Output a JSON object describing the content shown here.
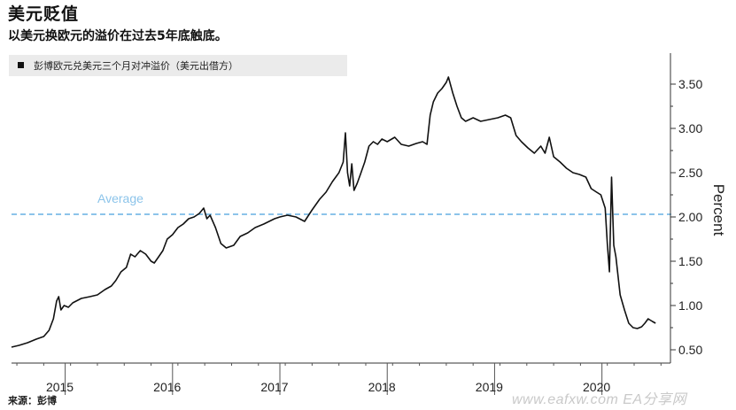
{
  "header": {
    "title": "美元贬值",
    "subtitle": "以美元换欧元的溢价在过去5年底触底。"
  },
  "footer": {
    "source": "来源：彭博",
    "watermark": "www.eafxw.com  EA分享网"
  },
  "chart_data": {
    "type": "line",
    "title": "美元贬值",
    "subtitle": "以美元换欧元的溢价在过去5年底触底。",
    "ylabel": "Percent",
    "ylim": [
      0.35,
      3.85
    ],
    "xlim": [
      2014.55,
      2020.68
    ],
    "y_ticks": [
      0.5,
      1.0,
      1.5,
      2.0,
      2.5,
      3.0,
      3.5
    ],
    "y_tick_labels": [
      "0.50",
      "1.00",
      "1.50",
      "2.00",
      "2.50",
      "3.00",
      "3.50"
    ],
    "x_year_labels": [
      "2015",
      "2016",
      "2017",
      "2018",
      "2019",
      "2020"
    ],
    "x_year_label_positions": [
      2015.0,
      2016.0,
      2017.0,
      2018.0,
      2019.0,
      2020.0
    ],
    "x_year_boundaries": [
      2015.05,
      2016.05,
      2017.05,
      2018.05,
      2019.05,
      2020.05
    ],
    "legend_position": "top-left",
    "grid": false,
    "series": [
      {
        "name": "彭博欧元兑美元三个月对冲溢价（美元出借方）",
        "color": "#111111",
        "points": [
          [
            2014.55,
            0.53
          ],
          [
            2014.62,
            0.55
          ],
          [
            2014.7,
            0.58
          ],
          [
            2014.78,
            0.62
          ],
          [
            2014.85,
            0.65
          ],
          [
            2014.9,
            0.72
          ],
          [
            2014.94,
            0.85
          ],
          [
            2014.97,
            1.05
          ],
          [
            2014.99,
            1.1
          ],
          [
            2015.01,
            0.95
          ],
          [
            2015.04,
            1.0
          ],
          [
            2015.08,
            0.98
          ],
          [
            2015.12,
            1.03
          ],
          [
            2015.2,
            1.08
          ],
          [
            2015.28,
            1.1
          ],
          [
            2015.35,
            1.12
          ],
          [
            2015.42,
            1.18
          ],
          [
            2015.48,
            1.22
          ],
          [
            2015.52,
            1.28
          ],
          [
            2015.57,
            1.38
          ],
          [
            2015.62,
            1.43
          ],
          [
            2015.66,
            1.58
          ],
          [
            2015.7,
            1.55
          ],
          [
            2015.75,
            1.62
          ],
          [
            2015.8,
            1.58
          ],
          [
            2015.85,
            1.5
          ],
          [
            2015.88,
            1.48
          ],
          [
            2015.92,
            1.55
          ],
          [
            2015.96,
            1.62
          ],
          [
            2016.0,
            1.75
          ],
          [
            2016.05,
            1.8
          ],
          [
            2016.1,
            1.88
          ],
          [
            2016.15,
            1.92
          ],
          [
            2016.2,
            1.98
          ],
          [
            2016.25,
            2.0
          ],
          [
            2016.3,
            2.04
          ],
          [
            2016.34,
            2.1
          ],
          [
            2016.37,
            1.98
          ],
          [
            2016.4,
            2.02
          ],
          [
            2016.45,
            1.88
          ],
          [
            2016.5,
            1.7
          ],
          [
            2016.55,
            1.65
          ],
          [
            2016.62,
            1.68
          ],
          [
            2016.68,
            1.78
          ],
          [
            2016.75,
            1.82
          ],
          [
            2016.82,
            1.88
          ],
          [
            2016.9,
            1.92
          ],
          [
            2016.95,
            1.95
          ],
          [
            2017.0,
            1.98
          ],
          [
            2017.05,
            2.0
          ],
          [
            2017.12,
            2.02
          ],
          [
            2017.2,
            2.0
          ],
          [
            2017.28,
            1.95
          ],
          [
            2017.35,
            2.08
          ],
          [
            2017.42,
            2.2
          ],
          [
            2017.48,
            2.28
          ],
          [
            2017.54,
            2.4
          ],
          [
            2017.6,
            2.5
          ],
          [
            2017.64,
            2.62
          ],
          [
            2017.66,
            2.95
          ],
          [
            2017.68,
            2.5
          ],
          [
            2017.7,
            2.35
          ],
          [
            2017.72,
            2.6
          ],
          [
            2017.74,
            2.3
          ],
          [
            2017.77,
            2.38
          ],
          [
            2017.8,
            2.48
          ],
          [
            2017.84,
            2.62
          ],
          [
            2017.88,
            2.8
          ],
          [
            2017.92,
            2.85
          ],
          [
            2017.96,
            2.82
          ],
          [
            2018.0,
            2.88
          ],
          [
            2018.05,
            2.85
          ],
          [
            2018.12,
            2.9
          ],
          [
            2018.18,
            2.82
          ],
          [
            2018.25,
            2.8
          ],
          [
            2018.32,
            2.83
          ],
          [
            2018.38,
            2.85
          ],
          [
            2018.42,
            2.82
          ],
          [
            2018.45,
            3.15
          ],
          [
            2018.48,
            3.3
          ],
          [
            2018.52,
            3.4
          ],
          [
            2018.56,
            3.45
          ],
          [
            2018.6,
            3.52
          ],
          [
            2018.62,
            3.58
          ],
          [
            2018.66,
            3.4
          ],
          [
            2018.7,
            3.25
          ],
          [
            2018.74,
            3.12
          ],
          [
            2018.78,
            3.08
          ],
          [
            2018.85,
            3.12
          ],
          [
            2018.92,
            3.08
          ],
          [
            2019.0,
            3.1
          ],
          [
            2019.08,
            3.12
          ],
          [
            2019.15,
            3.15
          ],
          [
            2019.2,
            3.12
          ],
          [
            2019.25,
            2.92
          ],
          [
            2019.3,
            2.85
          ],
          [
            2019.36,
            2.78
          ],
          [
            2019.42,
            2.72
          ],
          [
            2019.48,
            2.8
          ],
          [
            2019.52,
            2.72
          ],
          [
            2019.56,
            2.9
          ],
          [
            2019.6,
            2.68
          ],
          [
            2019.66,
            2.62
          ],
          [
            2019.72,
            2.55
          ],
          [
            2019.78,
            2.5
          ],
          [
            2019.84,
            2.48
          ],
          [
            2019.9,
            2.45
          ],
          [
            2019.95,
            2.32
          ],
          [
            2020.0,
            2.28
          ],
          [
            2020.04,
            2.25
          ],
          [
            2020.08,
            2.1
          ],
          [
            2020.1,
            1.7
          ],
          [
            2020.12,
            1.38
          ],
          [
            2020.14,
            2.45
          ],
          [
            2020.16,
            1.68
          ],
          [
            2020.18,
            1.55
          ],
          [
            2020.22,
            1.12
          ],
          [
            2020.26,
            0.95
          ],
          [
            2020.3,
            0.8
          ],
          [
            2020.34,
            0.75
          ],
          [
            2020.38,
            0.74
          ],
          [
            2020.42,
            0.76
          ],
          [
            2020.45,
            0.8
          ],
          [
            2020.48,
            0.85
          ],
          [
            2020.52,
            0.82
          ],
          [
            2020.55,
            0.8
          ]
        ]
      }
    ],
    "annotations": [
      {
        "label": "Average",
        "y": 2.03,
        "style": "dashed",
        "color": "#8cc4ea"
      }
    ]
  }
}
